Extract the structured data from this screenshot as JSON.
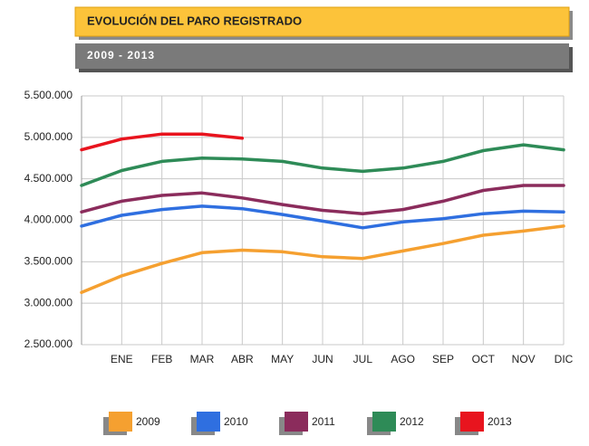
{
  "chart_data": {
    "type": "line",
    "title": "EVOLUCIÓN DEL PARO REGISTRADO",
    "subtitle": "2009 - 2013",
    "categories": [
      null,
      "ENE",
      "FEB",
      "MAR",
      "ABR",
      "MAY",
      "JUN",
      "JUL",
      "AGO",
      "SEP",
      "OCT",
      "NOV",
      "DIC"
    ],
    "series": [
      {
        "name": "2009",
        "color": "#f5a030",
        "values": [
          3130000,
          3330000,
          3480000,
          3610000,
          3640000,
          3620000,
          3560000,
          3540000,
          3630000,
          3720000,
          3820000,
          3870000,
          3930000
        ]
      },
      {
        "name": "2010",
        "color": "#2f6fe0",
        "values": [
          3930000,
          4060000,
          4130000,
          4170000,
          4140000,
          4070000,
          3990000,
          3910000,
          3980000,
          4020000,
          4080000,
          4110000,
          4100000
        ]
      },
      {
        "name": "2011",
        "color": "#8b2c5c",
        "values": [
          4100000,
          4230000,
          4300000,
          4330000,
          4270000,
          4190000,
          4120000,
          4080000,
          4130000,
          4230000,
          4360000,
          4420000,
          4420000
        ]
      },
      {
        "name": "2012",
        "color": "#2e8b57",
        "values": [
          4420000,
          4600000,
          4710000,
          4750000,
          4740000,
          4710000,
          4630000,
          4590000,
          4630000,
          4710000,
          4840000,
          4910000,
          4850000
        ]
      },
      {
        "name": "2013",
        "color": "#e8141e",
        "values": [
          4850000,
          4980000,
          5040000,
          5040000,
          4990000,
          null,
          null,
          null,
          null,
          null,
          null,
          null,
          null
        ]
      }
    ],
    "ylim": [
      2500000,
      5500000
    ],
    "yticks": [
      {
        "value": 2500000,
        "label": "2.500.000"
      },
      {
        "value": 3000000,
        "label": "3.000.000"
      },
      {
        "value": 3500000,
        "label": "3.500.000"
      },
      {
        "value": 4000000,
        "label": "4.000.000"
      },
      {
        "value": 4500000,
        "label": "4.500.000"
      },
      {
        "value": 5000000,
        "label": "5.000.000"
      },
      {
        "value": 5500000,
        "label": "5.500.000"
      }
    ],
    "grid": true
  }
}
